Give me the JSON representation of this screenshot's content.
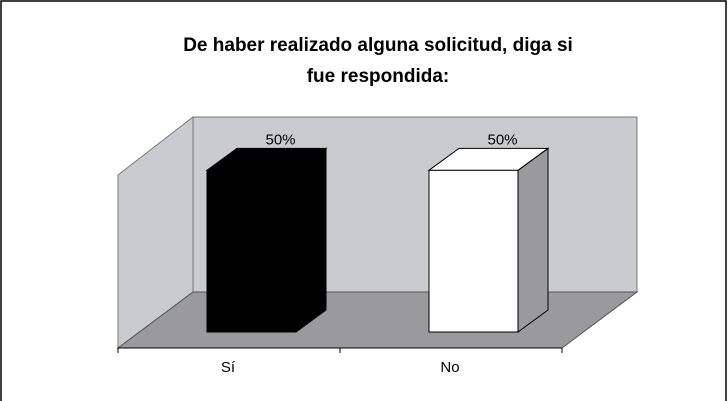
{
  "chart_data": {
    "type": "bar3d",
    "title": "De haber realizado alguna solicitud, diga si fue respondida:",
    "categories": [
      "Sí",
      "No"
    ],
    "values": [
      50,
      50
    ],
    "value_labels": [
      "50%",
      "50%"
    ],
    "colors": [
      "#000000",
      "#ffffff"
    ],
    "ylim": [
      0,
      60
    ]
  }
}
